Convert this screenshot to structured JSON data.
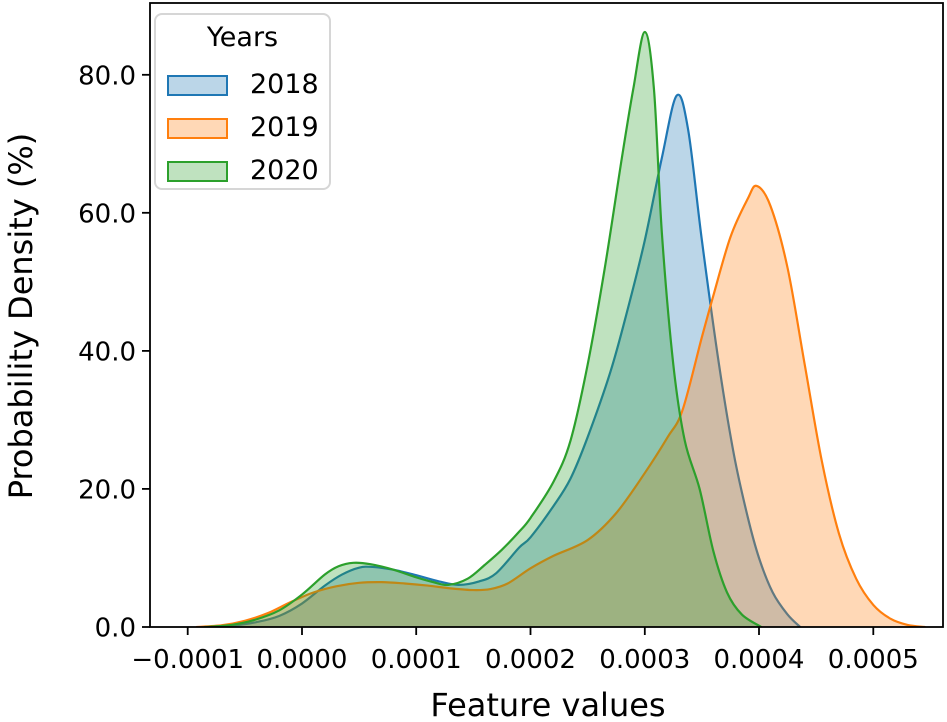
{
  "figure": {
    "background": "#ffffff",
    "frame_color": "#000000"
  },
  "chart_data": {
    "type": "area",
    "title": "",
    "xlabel": "Feature values",
    "ylabel": "Probability Density (%)",
    "xlim": [
      -0.000133,
      0.000561
    ],
    "ylim": [
      0,
      90.4
    ],
    "grid": false,
    "fill_opacity": 0.3,
    "line_width": 2.2,
    "xticks": {
      "values": [
        -0.0001,
        0.0,
        0.0001,
        0.0002,
        0.0003,
        0.0004,
        0.0005
      ],
      "labels": [
        "−0.0001",
        "0.0000",
        "0.0001",
        "0.0002",
        "0.0003",
        "0.0004",
        "0.0005"
      ]
    },
    "yticks": {
      "values": [
        0,
        20,
        40,
        60,
        80
      ],
      "labels": [
        "0.0",
        "20.0",
        "40.0",
        "60.0",
        "80.0"
      ]
    },
    "legend": {
      "title": "Years",
      "position": "upper left",
      "entries": [
        {
          "label": "2018",
          "color": "#1f77b4"
        },
        {
          "label": "2019",
          "color": "#ff7f0e"
        },
        {
          "label": "2020",
          "color": "#2ca02c"
        }
      ]
    },
    "series": [
      {
        "name": "2018",
        "color": "#1f77b4",
        "peak_x": 0.000328,
        "peak_y": 77,
        "points": [
          [
            -8.2e-05,
            0
          ],
          [
            -6e-05,
            0.2
          ],
          [
            -4e-05,
            0.7
          ],
          [
            -2e-05,
            1.6
          ],
          [
            0.0,
            3.4
          ],
          [
            2e-05,
            6.0
          ],
          [
            3.5e-05,
            7.6
          ],
          [
            5e-05,
            8.6
          ],
          [
            6.2e-05,
            8.7
          ],
          [
            8e-05,
            8.3
          ],
          [
            0.0001,
            7.5
          ],
          [
            0.00012,
            6.6
          ],
          [
            0.000137,
            6.1
          ],
          [
            0.000155,
            6.6
          ],
          [
            0.00017,
            7.8
          ],
          [
            0.00019,
            11.5
          ],
          [
            0.0002,
            13.0
          ],
          [
            0.00022,
            17.5
          ],
          [
            0.000235,
            21.5
          ],
          [
            0.00025,
            27.5
          ],
          [
            0.00027,
            37
          ],
          [
            0.000285,
            46
          ],
          [
            0.0003,
            56
          ],
          [
            0.000315,
            68
          ],
          [
            0.000328,
            77
          ],
          [
            0.000338,
            72
          ],
          [
            0.00035,
            56
          ],
          [
            0.000365,
            38
          ],
          [
            0.000378,
            25
          ],
          [
            0.00039,
            16
          ],
          [
            0.0004,
            10
          ],
          [
            0.000412,
            5
          ],
          [
            0.000425,
            1.8
          ],
          [
            0.000436,
            0
          ]
        ]
      },
      {
        "name": "2019",
        "color": "#ff7f0e",
        "peak_x": 0.000398,
        "peak_y": 63.9,
        "points": [
          [
            -9.2e-05,
            0
          ],
          [
            -7e-05,
            0.25
          ],
          [
            -5e-05,
            0.9
          ],
          [
            -3e-05,
            2.0
          ],
          [
            -1e-05,
            3.6
          ],
          [
            1e-05,
            5.0
          ],
          [
            3e-05,
            5.9
          ],
          [
            5e-05,
            6.4
          ],
          [
            7e-05,
            6.5
          ],
          [
            9e-05,
            6.3
          ],
          [
            0.00011,
            6.0
          ],
          [
            0.00013,
            5.6
          ],
          [
            0.00015,
            5.35
          ],
          [
            0.000165,
            5.5
          ],
          [
            0.00018,
            6.3
          ],
          [
            0.0002,
            8.5
          ],
          [
            0.00022,
            10.3
          ],
          [
            0.00025,
            12.6
          ],
          [
            0.000275,
            16.5
          ],
          [
            0.0003,
            22.3
          ],
          [
            0.00032,
            27.5
          ],
          [
            0.000333,
            31.4
          ],
          [
            0.00035,
            42
          ],
          [
            0.00036,
            48
          ],
          [
            0.000375,
            56.5
          ],
          [
            0.00039,
            62
          ],
          [
            0.000398,
            63.9
          ],
          [
            0.00041,
            61
          ],
          [
            0.000425,
            52
          ],
          [
            0.00044,
            38
          ],
          [
            0.000455,
            24
          ],
          [
            0.00047,
            13.5
          ],
          [
            0.000485,
            7
          ],
          [
            0.0005,
            3.2
          ],
          [
            0.000515,
            1.2
          ],
          [
            0.00053,
            0.3
          ],
          [
            0.000545,
            0
          ]
        ]
      },
      {
        "name": "2020",
        "color": "#2ca02c",
        "peak_x": 0.0003,
        "peak_y": 86.2,
        "points": [
          [
            -8.5e-05,
            0
          ],
          [
            -6.2e-05,
            0.3
          ],
          [
            -4.2e-05,
            1.0
          ],
          [
            -2e-05,
            2.4
          ],
          [
            0.0,
            4.7
          ],
          [
            2e-05,
            7.6
          ],
          [
            3.2e-05,
            8.8
          ],
          [
            4.5e-05,
            9.3
          ],
          [
            6e-05,
            9.1
          ],
          [
            8e-05,
            8.3
          ],
          [
            0.0001,
            7.2
          ],
          [
            0.000115,
            6.5
          ],
          [
            0.000128,
            6.1
          ],
          [
            0.000145,
            7.0
          ],
          [
            0.00016,
            9.0
          ],
          [
            0.000175,
            11.2
          ],
          [
            0.00019,
            13.8
          ],
          [
            0.0002,
            15.8
          ],
          [
            0.00022,
            21
          ],
          [
            0.000235,
            27
          ],
          [
            0.00025,
            38
          ],
          [
            0.000265,
            52
          ],
          [
            0.00028,
            68
          ],
          [
            0.00029,
            78
          ],
          [
            0.0003,
            86.2
          ],
          [
            0.000308,
            78
          ],
          [
            0.000315,
            57
          ],
          [
            0.000325,
            38
          ],
          [
            0.000335,
            27
          ],
          [
            0.000348,
            20
          ],
          [
            0.00036,
            11
          ],
          [
            0.000372,
            5
          ],
          [
            0.000385,
            1.8
          ],
          [
            0.000402,
            0
          ]
        ]
      }
    ]
  }
}
